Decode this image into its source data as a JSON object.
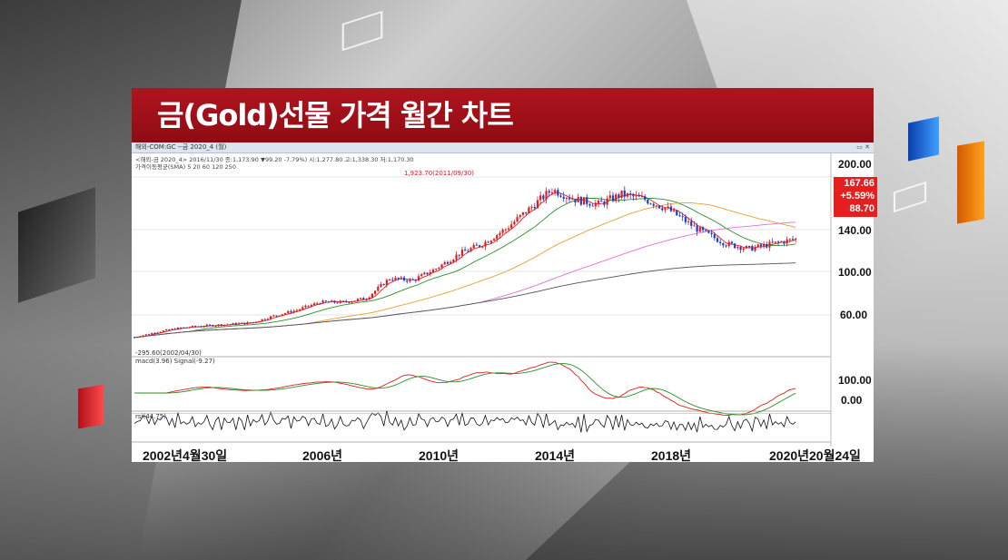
{
  "headline": "금(Gold)선물 가격 월간 차트",
  "window": {
    "title": "해외-COM:GC --금 2020_4 (월)",
    "buttons": "▭ ✕"
  },
  "info": {
    "price_line": "<해외-금 2020_4> 2016/11/30 종:1,173.90 ▼99.20 -7.79%) 시:1,277.80 고:1,338.30 저:1,170.30",
    "ma_line": "가격이동평균(SMA) 5 20 60 120 250",
    "peak_label": "1,923.70(2011/09/30)",
    "trough_label": "-295.60(2002/04/30)",
    "macd_line": "macd(3.96) Signal(-9.27)",
    "rsi_line": "rsi(44.75)"
  },
  "badge": {
    "price": "167.66",
    "change": "+5.59%",
    "sub": "88.70"
  },
  "colors": {
    "up": "#e21d1d",
    "down": "#1a3fd0",
    "ma5": "#e21d1d",
    "ma20": "#2a8f2a",
    "ma60": "#e8a030",
    "ma120": "#e070e0",
    "ma250": "#555555",
    "title_bar": "#a3111b",
    "badge": "#e61e1e"
  },
  "chart_data": {
    "type": "line",
    "x_labels": [
      "2002년4월30일",
      "2006년",
      "2010년",
      "2014년",
      "2018년",
      "2020년20월24일"
    ],
    "y_tick_labels": [
      "200.00",
      "140.00",
      "100.00",
      "60.00"
    ],
    "macd_tick_labels": [
      "100.00",
      "0.00"
    ],
    "series": [
      {
        "x": [
          0,
          8,
          16,
          24,
          32,
          40,
          48,
          56,
          64,
          72,
          80,
          88,
          96,
          104,
          112,
          120,
          128,
          136,
          144,
          152,
          160,
          168,
          176,
          184,
          194,
          204,
          212,
          220,
          228
        ],
        "values": [
          305,
          360,
          400,
          420,
          435,
          450,
          520,
          580,
          660,
          660,
          700,
          900,
          880,
          1000,
          1150,
          1250,
          1400,
          1600,
          1800,
          1700,
          1650,
          1750,
          1700,
          1600,
          1400,
          1250,
          1200,
          1250,
          1300
        ]
      }
    ]
  }
}
